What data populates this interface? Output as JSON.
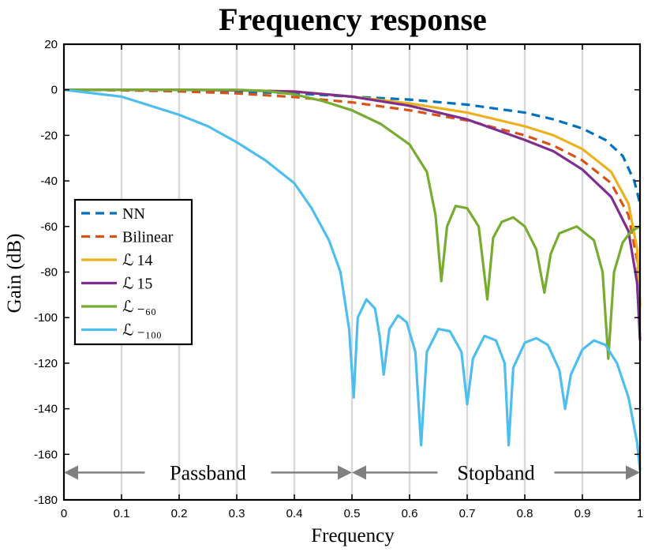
{
  "chart_data": {
    "type": "line",
    "title": "Frequency response",
    "xlabel": "Frequency",
    "ylabel": "Gain (dB)",
    "xlim": [
      0,
      1
    ],
    "ylim": [
      -180,
      20
    ],
    "xticks": [
      0,
      0.1,
      0.2,
      0.3,
      0.4,
      0.5,
      0.6,
      0.7,
      0.8,
      0.9,
      1
    ],
    "xtick_labels": [
      "0",
      "0.1",
      "0.2",
      "0.3",
      "0.4",
      "0.5",
      "0.6",
      "0.7",
      "0.8",
      "0.9",
      "1"
    ],
    "yticks": [
      20,
      0,
      -20,
      -40,
      -60,
      -80,
      -100,
      -120,
      -140,
      -160,
      -180
    ],
    "ytick_labels": [
      "20",
      "0",
      "-20",
      "-40",
      "-60",
      "-80",
      "-100",
      "-120",
      "-140",
      "-160",
      "-180"
    ],
    "vertical_grid": true,
    "legend_position": "middle-left",
    "series": [
      {
        "name": "NN",
        "color": "#0072BD",
        "style": "dashed",
        "points": [
          [
            0,
            0
          ],
          [
            0.1,
            -0.1
          ],
          [
            0.2,
            -0.3
          ],
          [
            0.3,
            -0.8
          ],
          [
            0.4,
            -1.6
          ],
          [
            0.5,
            -3.0
          ],
          [
            0.6,
            -4.3
          ],
          [
            0.7,
            -6.5
          ],
          [
            0.8,
            -10.0
          ],
          [
            0.85,
            -13.0
          ],
          [
            0.9,
            -17.0
          ],
          [
            0.94,
            -22.0
          ],
          [
            0.97,
            -29.0
          ],
          [
            0.99,
            -40.0
          ],
          [
            1.0,
            -50.0
          ]
        ]
      },
      {
        "name": "Bilinear",
        "color": "#D95319",
        "style": "dashed",
        "points": [
          [
            0,
            0
          ],
          [
            0.1,
            -0.2
          ],
          [
            0.2,
            -0.7
          ],
          [
            0.3,
            -1.6
          ],
          [
            0.4,
            -3.2
          ],
          [
            0.5,
            -5.5
          ],
          [
            0.6,
            -9.0
          ],
          [
            0.7,
            -13.5
          ],
          [
            0.8,
            -20.0
          ],
          [
            0.85,
            -24.5
          ],
          [
            0.9,
            -31.0
          ],
          [
            0.95,
            -41.0
          ],
          [
            0.98,
            -55.0
          ],
          [
            0.995,
            -75.0
          ],
          [
            1.0,
            -95.0
          ]
        ]
      },
      {
        "name": "ℒ 14",
        "color": "#EDB120",
        "style": "solid",
        "points": [
          [
            0,
            0
          ],
          [
            0.1,
            0
          ],
          [
            0.2,
            0
          ],
          [
            0.3,
            -0.2
          ],
          [
            0.4,
            -0.7
          ],
          [
            0.5,
            -3.0
          ],
          [
            0.6,
            -6.0
          ],
          [
            0.7,
            -10.0
          ],
          [
            0.8,
            -16.0
          ],
          [
            0.85,
            -20.0
          ],
          [
            0.9,
            -26.0
          ],
          [
            0.95,
            -36.0
          ],
          [
            0.98,
            -50.0
          ],
          [
            0.995,
            -70.0
          ],
          [
            1.0,
            -95.0
          ]
        ]
      },
      {
        "name": "ℒ 15",
        "color": "#7E2F8E",
        "style": "solid",
        "points": [
          [
            0,
            0
          ],
          [
            0.1,
            0
          ],
          [
            0.2,
            0
          ],
          [
            0.3,
            -0.2
          ],
          [
            0.4,
            -0.8
          ],
          [
            0.5,
            -3.0
          ],
          [
            0.6,
            -7.0
          ],
          [
            0.7,
            -13.0
          ],
          [
            0.8,
            -22.0
          ],
          [
            0.85,
            -27.0
          ],
          [
            0.9,
            -35.0
          ],
          [
            0.95,
            -47.0
          ],
          [
            0.98,
            -62.0
          ],
          [
            0.995,
            -85.0
          ],
          [
            1.0,
            -110.0
          ]
        ]
      },
      {
        "name": "ℒ ₋₆₀",
        "color": "#77AC30",
        "style": "solid",
        "points": [
          [
            0,
            0
          ],
          [
            0.1,
            0
          ],
          [
            0.2,
            0
          ],
          [
            0.3,
            0
          ],
          [
            0.35,
            -0.5
          ],
          [
            0.4,
            -2.0
          ],
          [
            0.45,
            -5.0
          ],
          [
            0.5,
            -9.0
          ],
          [
            0.55,
            -15.0
          ],
          [
            0.6,
            -24.0
          ],
          [
            0.63,
            -36.0
          ],
          [
            0.645,
            -55.0
          ],
          [
            0.655,
            -84.0
          ],
          [
            0.665,
            -60.0
          ],
          [
            0.68,
            -51.0
          ],
          [
            0.7,
            -52.0
          ],
          [
            0.72,
            -60.0
          ],
          [
            0.735,
            -92.0
          ],
          [
            0.745,
            -65.0
          ],
          [
            0.76,
            -58.0
          ],
          [
            0.78,
            -56.0
          ],
          [
            0.8,
            -60.0
          ],
          [
            0.82,
            -70.0
          ],
          [
            0.834,
            -89.0
          ],
          [
            0.845,
            -72.0
          ],
          [
            0.86,
            -63.0
          ],
          [
            0.89,
            -60.0
          ],
          [
            0.92,
            -66.0
          ],
          [
            0.935,
            -80.0
          ],
          [
            0.945,
            -118.0
          ],
          [
            0.955,
            -80.0
          ],
          [
            0.97,
            -67.0
          ],
          [
            0.985,
            -62.0
          ],
          [
            1.0,
            -60.0
          ]
        ]
      },
      {
        "name": "ℒ ₋₁₀₀",
        "color": "#4DBEEE",
        "style": "solid",
        "points": [
          [
            0,
            0
          ],
          [
            0.05,
            -1.5
          ],
          [
            0.1,
            -3.0
          ],
          [
            0.15,
            -7.0
          ],
          [
            0.2,
            -11.0
          ],
          [
            0.25,
            -16.0
          ],
          [
            0.3,
            -23.0
          ],
          [
            0.35,
            -31.0
          ],
          [
            0.4,
            -41.0
          ],
          [
            0.43,
            -52.0
          ],
          [
            0.46,
            -66.0
          ],
          [
            0.48,
            -80.0
          ],
          [
            0.495,
            -105.0
          ],
          [
            0.503,
            -135.0
          ],
          [
            0.51,
            -100.0
          ],
          [
            0.525,
            -92.0
          ],
          [
            0.54,
            -96.0
          ],
          [
            0.548,
            -108.0
          ],
          [
            0.555,
            -125.0
          ],
          [
            0.565,
            -105.0
          ],
          [
            0.58,
            -99.0
          ],
          [
            0.595,
            -102.0
          ],
          [
            0.61,
            -115.0
          ],
          [
            0.62,
            -156.0
          ],
          [
            0.63,
            -115.0
          ],
          [
            0.65,
            -105.0
          ],
          [
            0.67,
            -106.0
          ],
          [
            0.69,
            -115.0
          ],
          [
            0.7,
            -138.0
          ],
          [
            0.71,
            -118.0
          ],
          [
            0.73,
            -108.0
          ],
          [
            0.75,
            -110.0
          ],
          [
            0.765,
            -120.0
          ],
          [
            0.772,
            -156.0
          ],
          [
            0.78,
            -122.0
          ],
          [
            0.8,
            -111.0
          ],
          [
            0.82,
            -109.0
          ],
          [
            0.84,
            -112.0
          ],
          [
            0.86,
            -123.0
          ],
          [
            0.87,
            -140.0
          ],
          [
            0.88,
            -125.0
          ],
          [
            0.9,
            -114.0
          ],
          [
            0.92,
            -110.0
          ],
          [
            0.94,
            -112.0
          ],
          [
            0.96,
            -120.0
          ],
          [
            0.98,
            -135.0
          ],
          [
            0.995,
            -155.0
          ],
          [
            1.0,
            -167.0
          ]
        ]
      }
    ],
    "annotations": {
      "passband": {
        "label": "Passband",
        "from": 0,
        "to": 0.5,
        "y": -168
      },
      "stopband": {
        "label": "Stopband",
        "from": 0.5,
        "to": 1,
        "y": -168
      }
    },
    "colors": {
      "arrow": "#808080",
      "grid": "#d9d9d9",
      "frame": "#000000"
    }
  }
}
